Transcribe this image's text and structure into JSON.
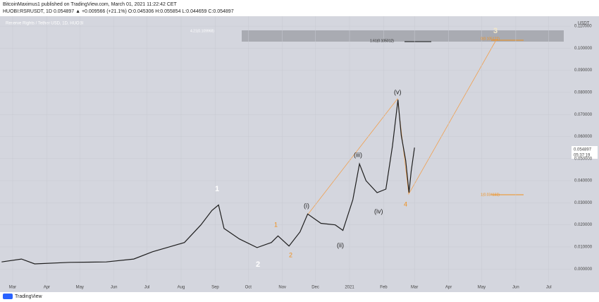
{
  "header": {
    "author_line": "BitcoinMaximus1 published on TradingView.com, March 01, 2021 11:22:42 CET",
    "symbol_line": "HUOBI:RSRUSDT, 1D 0.054897 ▲ +0.009566 (+21.1%) O:0.045306 H:0.055854 L:0.044659 C:0.054897"
  },
  "chart_data": {
    "type": "line",
    "title": "Reserve Rights / Tether USD, 1D, HUOBI",
    "y_unit": "USDT",
    "color": "#1e1e1e",
    "x": [
      -10,
      8,
      20,
      52,
      85,
      110,
      127,
      145,
      156,
      171,
      181,
      187,
      192,
      206,
      222,
      235,
      241,
      251,
      261,
      268,
      280,
      293,
      300,
      309,
      315,
      321,
      331,
      339,
      345,
      350,
      353,
      357,
      360,
      362,
      365
    ],
    "values": [
      0.0032,
      0.0045,
      0.0023,
      0.003,
      0.0032,
      0.0045,
      0.0078,
      0.0104,
      0.012,
      0.02,
      0.0265,
      0.029,
      0.0184,
      0.0136,
      0.0097,
      0.012,
      0.015,
      0.0104,
      0.0168,
      0.0249,
      0.0207,
      0.02,
      0.0175,
      0.0314,
      0.0476,
      0.04,
      0.0346,
      0.0362,
      0.0557,
      0.0767,
      0.0605,
      0.0492,
      0.0346,
      0.0443,
      0.055
    ],
    "xlim": [
      -11.5,
      507
    ],
    "xticks": [
      {
        "value": 0,
        "label": "Mar"
      },
      {
        "value": 31,
        "label": "Apr"
      },
      {
        "value": 61,
        "label": "May"
      },
      {
        "value": 92,
        "label": "Jun"
      },
      {
        "value": 122,
        "label": "Jul"
      },
      {
        "value": 153,
        "label": "Aug"
      },
      {
        "value": 184,
        "label": "Sep"
      },
      {
        "value": 214,
        "label": "Oct"
      },
      {
        "value": 245,
        "label": "Nov"
      },
      {
        "value": 275,
        "label": "Dec"
      },
      {
        "value": 306,
        "label": "2021"
      },
      {
        "value": 337,
        "label": "Feb"
      },
      {
        "value": 365,
        "label": "Mar"
      },
      {
        "value": 396,
        "label": "Apr"
      },
      {
        "value": 426,
        "label": "May"
      },
      {
        "value": 457,
        "label": "Jun"
      },
      {
        "value": 487,
        "label": "Jul"
      }
    ],
    "ylim": [
      -0.006,
      0.1145
    ],
    "yticks": [
      {
        "value": 0,
        "label": "0.000000"
      },
      {
        "value": 0.01,
        "label": "0.010000"
      },
      {
        "value": 0.02,
        "label": "0.020000"
      },
      {
        "value": 0.03,
        "label": "0.030000"
      },
      {
        "value": 0.04,
        "label": "0.040000"
      },
      {
        "value": 0.05,
        "label": "0.050000"
      },
      {
        "value": 0.06,
        "label": "0.060000"
      },
      {
        "value": 0.07,
        "label": "0.070000"
      },
      {
        "value": 0.08,
        "label": "0.080000"
      },
      {
        "value": 0.09,
        "label": "0.090000"
      },
      {
        "value": 0.1,
        "label": "0.100000"
      },
      {
        "value": 0.11,
        "label": "0.110000"
      }
    ],
    "last_price": "0.054897",
    "countdown": "05:37:19",
    "annotations": [
      "1",
      "2",
      "1",
      "2",
      "(i)",
      "(ii)",
      "(iii)",
      "(iv)",
      "(v)",
      "4",
      "3"
    ],
    "fib_labels": [
      "4.21(0.109968)",
      "1.61(0.105012)",
      "0(0.105122)",
      "1(0.034192)"
    ]
  },
  "footer": {
    "brand": "TradingView"
  }
}
